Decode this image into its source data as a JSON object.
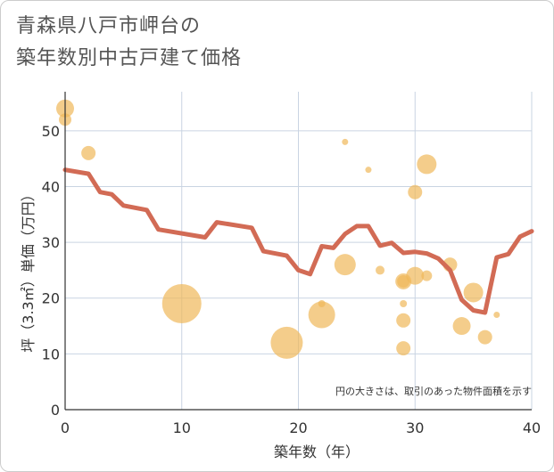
{
  "title": {
    "line1": "青森県八戸市岬台の",
    "line2": "築年数別中古戸建て価格"
  },
  "colors": {
    "bubble": "#f0b85a",
    "line": "#d26b55",
    "grid": "#c9d4e2",
    "axis": "#333333"
  },
  "chart_data": {
    "type": "scatter",
    "xlabel": "築年数（年）",
    "ylabel": "坪（3.3㎡）単価（万円）",
    "xlim": [
      0,
      40
    ],
    "ylim": [
      0,
      57
    ],
    "xticks": [
      "0",
      "10",
      "20",
      "30",
      "40"
    ],
    "yticks": [
      "0",
      "10",
      "20",
      "30",
      "40",
      "50"
    ],
    "annotation": "円の大きさは、取引のあった物件面積を示す",
    "bubbles": [
      {
        "x": 0,
        "y": 54,
        "r": 10
      },
      {
        "x": 0,
        "y": 52,
        "r": 7
      },
      {
        "x": 2,
        "y": 46,
        "r": 8
      },
      {
        "x": 10,
        "y": 19,
        "r": 22
      },
      {
        "x": 19,
        "y": 12,
        "r": 18
      },
      {
        "x": 22,
        "y": 17,
        "r": 15
      },
      {
        "x": 22,
        "y": 19,
        "r": 4
      },
      {
        "x": 24,
        "y": 48,
        "r": 3.5
      },
      {
        "x": 24,
        "y": 26,
        "r": 12
      },
      {
        "x": 26,
        "y": 43,
        "r": 3.5
      },
      {
        "x": 27,
        "y": 25,
        "r": 5
      },
      {
        "x": 29,
        "y": 23,
        "r": 9
      },
      {
        "x": 29,
        "y": 23,
        "r": 7
      },
      {
        "x": 29,
        "y": 19,
        "r": 4
      },
      {
        "x": 29,
        "y": 16,
        "r": 8
      },
      {
        "x": 29,
        "y": 11,
        "r": 8
      },
      {
        "x": 30,
        "y": 39,
        "r": 8
      },
      {
        "x": 30,
        "y": 24,
        "r": 10
      },
      {
        "x": 31,
        "y": 44,
        "r": 11
      },
      {
        "x": 31,
        "y": 24,
        "r": 6
      },
      {
        "x": 33,
        "y": 26,
        "r": 8
      },
      {
        "x": 34,
        "y": 15,
        "r": 10
      },
      {
        "x": 35,
        "y": 21,
        "r": 11
      },
      {
        "x": 36,
        "y": 13,
        "r": 8
      },
      {
        "x": 37,
        "y": 17,
        "r": 3.5
      }
    ],
    "trend": [
      {
        "x": 0,
        "y": 43
      },
      {
        "x": 2,
        "y": 42.3
      },
      {
        "x": 3,
        "y": 39
      },
      {
        "x": 4,
        "y": 38.6
      },
      {
        "x": 5,
        "y": 36.6
      },
      {
        "x": 7,
        "y": 35.8
      },
      {
        "x": 8,
        "y": 32.3
      },
      {
        "x": 12,
        "y": 30.9
      },
      {
        "x": 13,
        "y": 33.6
      },
      {
        "x": 16,
        "y": 32.6
      },
      {
        "x": 17,
        "y": 28.4
      },
      {
        "x": 19,
        "y": 27.6
      },
      {
        "x": 20,
        "y": 25
      },
      {
        "x": 21,
        "y": 24.3
      },
      {
        "x": 22,
        "y": 29.3
      },
      {
        "x": 23,
        "y": 29
      },
      {
        "x": 24,
        "y": 31.5
      },
      {
        "x": 25,
        "y": 32.9
      },
      {
        "x": 26,
        "y": 32.9
      },
      {
        "x": 27,
        "y": 29.4
      },
      {
        "x": 28,
        "y": 29.9
      },
      {
        "x": 29,
        "y": 28.1
      },
      {
        "x": 30,
        "y": 28.3
      },
      {
        "x": 31,
        "y": 28
      },
      {
        "x": 32,
        "y": 27.1
      },
      {
        "x": 33,
        "y": 25
      },
      {
        "x": 34,
        "y": 19.7
      },
      {
        "x": 35,
        "y": 17.8
      },
      {
        "x": 36,
        "y": 17.4
      },
      {
        "x": 37,
        "y": 27.3
      },
      {
        "x": 38,
        "y": 27.9
      },
      {
        "x": 39,
        "y": 31
      },
      {
        "x": 40,
        "y": 32
      }
    ]
  }
}
